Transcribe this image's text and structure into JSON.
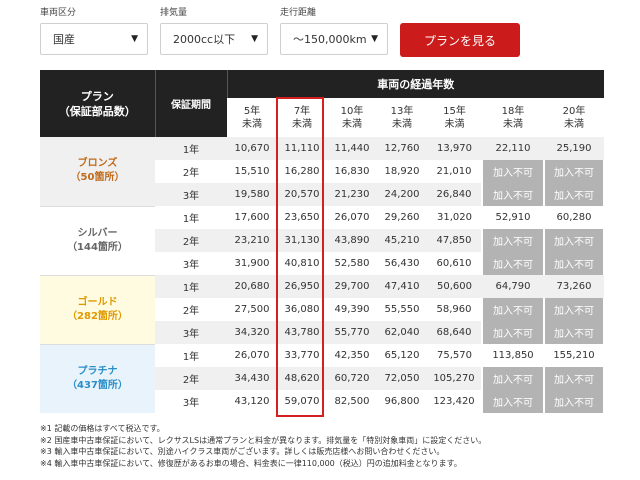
{
  "filters": [
    {
      "label": "車両区分",
      "value": "国産"
    },
    {
      "label": "排気量",
      "value": "2000cc以下"
    },
    {
      "label": "走行距離",
      "value": "～150,000km"
    }
  ],
  "button_label": "プランを見る",
  "table": {
    "plan_header": "プラン\n（保証部品数）",
    "period_header": "保証期間",
    "years_header": "車両の経過年数",
    "year_columns": [
      {
        "line1": "5年",
        "line2": "未満"
      },
      {
        "line1": "7年",
        "line2": "未満"
      },
      {
        "line1": "10年",
        "line2": "未満"
      },
      {
        "line1": "13年",
        "line2": "未満"
      },
      {
        "line1": "15年",
        "line2": "未満"
      },
      {
        "line1": "18年",
        "line2": "未満"
      },
      {
        "line1": "20年",
        "line2": "未満"
      }
    ],
    "plans": [
      {
        "name": "ブロンズ",
        "count": "（50箇所）",
        "style": "bronze",
        "rows": [
          {
            "period": "1年",
            "values": [
              "10,670",
              "11,110",
              "11,440",
              "12,760",
              "13,970",
              "22,110",
              "25,190"
            ]
          },
          {
            "period": "2年",
            "values": [
              "15,510",
              "16,280",
              "16,830",
              "18,920",
              "21,010",
              "加入不可",
              "加入不可"
            ]
          },
          {
            "period": "3年",
            "values": [
              "19,580",
              "20,570",
              "21,230",
              "24,200",
              "26,840",
              "加入不可",
              "加入不可"
            ]
          }
        ]
      },
      {
        "name": "シルバー",
        "count": "（144箇所）",
        "style": "silver",
        "rows": [
          {
            "period": "1年",
            "values": [
              "17,600",
              "23,650",
              "26,070",
              "29,260",
              "31,020",
              "52,910",
              "60,280"
            ]
          },
          {
            "period": "2年",
            "values": [
              "23,210",
              "31,130",
              "43,890",
              "45,210",
              "47,850",
              "加入不可",
              "加入不可"
            ]
          },
          {
            "period": "3年",
            "values": [
              "31,900",
              "40,810",
              "52,580",
              "56,430",
              "60,610",
              "加入不可",
              "加入不可"
            ]
          }
        ]
      },
      {
        "name": "ゴールド",
        "count": "（282箇所）",
        "style": "gold",
        "rows": [
          {
            "period": "1年",
            "values": [
              "20,680",
              "26,950",
              "29,700",
              "47,410",
              "50,600",
              "64,790",
              "73,260"
            ]
          },
          {
            "period": "2年",
            "values": [
              "27,500",
              "36,080",
              "49,390",
              "55,550",
              "58,960",
              "加入不可",
              "加入不可"
            ]
          },
          {
            "period": "3年",
            "values": [
              "34,320",
              "43,780",
              "55,770",
              "62,040",
              "68,640",
              "加入不可",
              "加入不可"
            ]
          }
        ]
      },
      {
        "name": "プラチナ",
        "count": "（437箇所）",
        "style": "platinum",
        "rows": [
          {
            "period": "1年",
            "values": [
              "26,070",
              "33,770",
              "42,350",
              "65,120",
              "75,570",
              "113,850",
              "155,210"
            ]
          },
          {
            "period": "2年",
            "values": [
              "34,430",
              "48,620",
              "60,720",
              "72,050",
              "105,270",
              "加入不可",
              "加入不可"
            ]
          },
          {
            "period": "3年",
            "values": [
              "43,120",
              "59,070",
              "82,500",
              "96,800",
              "123,420",
              "加入不可",
              "加入不可"
            ]
          }
        ]
      }
    ]
  },
  "notes": [
    "※1 記載の価格はすべて税込です。",
    "※2 国産車中古車保証において、レクサスLSは通常プランと料金が異なります。排気量を「特別対象車両」に設定ください。",
    "※3 輸入車中古車保証において、別途ハイクラス車両がございます。詳しくは販売店様へお問い合わせください。",
    "※4 輸入車中古車保証において、修復歴があるお車の場合、料金表に一律110,000（税込）円の追加料金となります。"
  ],
  "colors": {
    "accent": "#cc1b1b",
    "header_bg": "#222222",
    "na_bg": "#b3b3b3"
  }
}
